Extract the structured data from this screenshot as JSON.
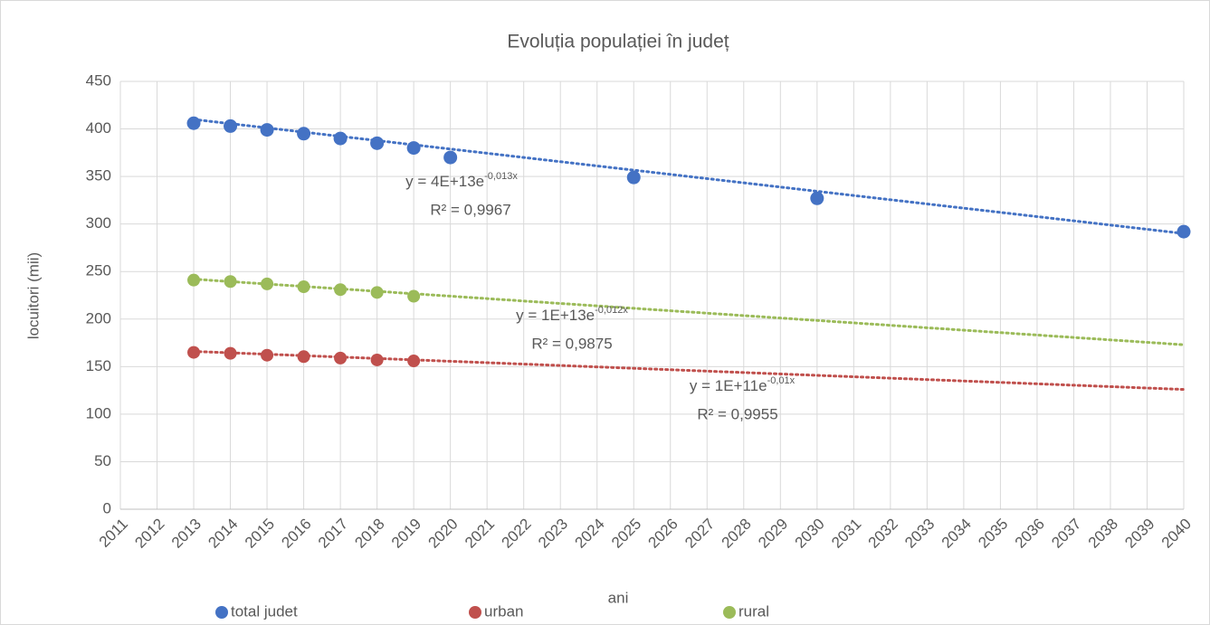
{
  "chart_data": {
    "type": "scatter",
    "title": "Evoluția populației în județ",
    "x_label": "ani",
    "y_label": "locuitori (mii)",
    "xlim": [
      2011,
      2040
    ],
    "xticks": [
      2011,
      2012,
      2013,
      2014,
      2015,
      2016,
      2017,
      2018,
      2019,
      2020,
      2021,
      2022,
      2023,
      2024,
      2025,
      2026,
      2027,
      2028,
      2029,
      2030,
      2031,
      2032,
      2033,
      2034,
      2035,
      2036,
      2037,
      2038,
      2039,
      2040
    ],
    "ylim": [
      0,
      450
    ],
    "yticks": [
      0,
      50,
      100,
      150,
      200,
      250,
      300,
      350,
      400,
      450
    ],
    "grid": true,
    "legend": "bottom",
    "series": [
      {
        "name": "total judet",
        "color": "#4472c4",
        "x": [
          2013,
          2014,
          2015,
          2016,
          2017,
          2018,
          2019,
          2020,
          2025,
          2030,
          2040
        ],
        "values": [
          406,
          403,
          399,
          395,
          390,
          385,
          380,
          370,
          349,
          327,
          292
        ],
        "trendline": {
          "x": [
            2013,
            2040
          ],
          "values": [
            410,
            290
          ],
          "equation": "y = 4E+13e",
          "exponent": "-0,013x",
          "r2": "R² = 0,9967"
        }
      },
      {
        "name": "urban",
        "color": "#c0504d",
        "x": [
          2013,
          2014,
          2015,
          2016,
          2017,
          2018,
          2019
        ],
        "values": [
          165,
          164,
          162,
          160.5,
          159,
          157,
          156
        ],
        "trendline": {
          "x": [
            2013,
            2040
          ],
          "values": [
            166,
            126
          ],
          "equation": "y = 1E+11e",
          "exponent": "-0,01x",
          "r2": "R² = 0,9955"
        }
      },
      {
        "name": "rural",
        "color": "#9bbb59",
        "x": [
          2013,
          2014,
          2015,
          2016,
          2017,
          2018,
          2019
        ],
        "values": [
          241,
          239.5,
          237,
          234,
          231,
          228,
          224
        ],
        "trendline": {
          "x": [
            2013,
            2040
          ],
          "values": [
            242,
            173
          ],
          "equation": "y = 1E+13e",
          "exponent": "-0,012x",
          "r2": "R² = 0,9875"
        }
      }
    ]
  }
}
